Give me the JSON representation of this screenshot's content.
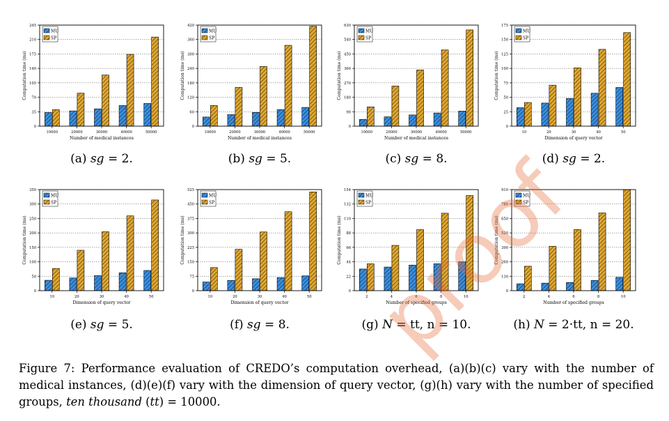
{
  "colors": {
    "mu": "#3b8fdf",
    "sp": "#e0a832",
    "hatch_mu": "#10355e",
    "hatch_sp": "#5a3c05",
    "watermark": "#e46937"
  },
  "legend": {
    "mu": "MU",
    "sp": "SP"
  },
  "chart_data": [
    {
      "type": "bar",
      "xlabel": "Number of medical instances",
      "ylabel": "Computation time (ms)",
      "categories": [
        "10000",
        "20000",
        "30000",
        "40000",
        "50000"
      ],
      "yticks": [
        "0",
        "35",
        "70",
        "105",
        "140",
        "175",
        "210",
        "245"
      ],
      "ylim": [
        0,
        245
      ],
      "series": [
        {
          "name": "MU",
          "values": [
            33,
            37,
            42,
            50,
            55
          ]
        },
        {
          "name": "SP",
          "values": [
            40,
            80,
            124,
            174,
            216
          ]
        }
      ]
    },
    {
      "type": "bar",
      "xlabel": "Number of medical instances",
      "ylabel": "Computation time (ms)",
      "categories": [
        "10000",
        "20000",
        "30000",
        "40000",
        "50000"
      ],
      "yticks": [
        "0",
        "60",
        "120",
        "180",
        "240",
        "300",
        "360",
        "420"
      ],
      "ylim": [
        0,
        420
      ],
      "series": [
        {
          "name": "MU",
          "values": [
            38,
            48,
            57,
            69,
            78
          ]
        },
        {
          "name": "SP",
          "values": [
            86,
            161,
            248,
            336,
            415
          ]
        }
      ]
    },
    {
      "type": "bar",
      "xlabel": "Number of medical instances",
      "ylabel": "Computation time (ms)",
      "categories": [
        "10000",
        "20000",
        "30000",
        "40000",
        "50000"
      ],
      "yticks": [
        "0",
        "90",
        "180",
        "270",
        "360",
        "450",
        "540",
        "630"
      ],
      "ylim": [
        0,
        630
      ],
      "series": [
        {
          "name": "MU",
          "values": [
            42,
            58,
            70,
            82,
            94
          ]
        },
        {
          "name": "SP",
          "values": [
            120,
            250,
            350,
            475,
            600
          ]
        }
      ]
    },
    {
      "type": "bar",
      "xlabel": "Dimension of query vector",
      "ylabel": "Computation time (ms)",
      "categories": [
        "10",
        "20",
        "30",
        "40",
        "50"
      ],
      "yticks": [
        "0",
        "25",
        "50",
        "75",
        "100",
        "125",
        "150",
        "175"
      ],
      "ylim": [
        0,
        175
      ],
      "series": [
        {
          "name": "MU",
          "values": [
            32,
            40,
            48,
            57,
            67
          ]
        },
        {
          "name": "SP",
          "values": [
            41,
            71,
            101,
            133,
            162
          ]
        }
      ]
    },
    {
      "type": "bar",
      "xlabel": "Dimension of query vector",
      "ylabel": "Computation time (ms)",
      "categories": [
        "10",
        "20",
        "30",
        "40",
        "50"
      ],
      "yticks": [
        "0",
        "50",
        "100",
        "150",
        "200",
        "250",
        "300",
        "350"
      ],
      "ylim": [
        0,
        350
      ],
      "series": [
        {
          "name": "MU",
          "values": [
            36,
            44,
            52,
            62,
            70
          ]
        },
        {
          "name": "SP",
          "values": [
            77,
            140,
            204,
            259,
            314
          ]
        }
      ]
    },
    {
      "type": "bar",
      "xlabel": "Dimension of query vector",
      "ylabel": "Computation time (ms)",
      "categories": [
        "10",
        "20",
        "30",
        "40",
        "50"
      ],
      "yticks": [
        "0",
        "75",
        "150",
        "225",
        "300",
        "375",
        "450",
        "525"
      ],
      "ylim": [
        0,
        525
      ],
      "series": [
        {
          "name": "MU",
          "values": [
            45,
            53,
            62,
            68,
            77
          ]
        },
        {
          "name": "SP",
          "values": [
            120,
            215,
            305,
            410,
            513
          ]
        }
      ]
    },
    {
      "type": "bar",
      "xlabel": "Number of specified groups",
      "ylabel": "Computation time (ms)",
      "categories": [
        "2",
        "4",
        "6",
        "8",
        "10"
      ],
      "yticks": [
        "0",
        "22",
        "44",
        "66",
        "88",
        "110",
        "132",
        "154"
      ],
      "ylim": [
        0,
        154
      ],
      "series": [
        {
          "name": "MU",
          "values": [
            33,
            36,
            39,
            41,
            44
          ]
        },
        {
          "name": "SP",
          "values": [
            41,
            69,
            93,
            118,
            145
          ]
        }
      ]
    },
    {
      "type": "bar",
      "xlabel": "Number of specified groups",
      "ylabel": "Computation time (ms)",
      "categories": [
        "2",
        "4",
        "6",
        "8",
        "10"
      ],
      "yticks": [
        "0",
        "130",
        "260",
        "390",
        "520",
        "650",
        "780",
        "910"
      ],
      "ylim": [
        0,
        910
      ],
      "series": [
        {
          "name": "MU",
          "values": [
            62,
            68,
            74,
            92,
            120
          ]
        },
        {
          "name": "SP",
          "values": [
            220,
            400,
            550,
            700,
            910
          ]
        }
      ]
    }
  ],
  "panel_captions": [
    {
      "label": "(a)",
      "var": "sg",
      "rest": " = 2."
    },
    {
      "label": "(b)",
      "var": "sg",
      "rest": " = 5."
    },
    {
      "label": "(c)",
      "var": "sg",
      "rest": " = 8."
    },
    {
      "label": "(d)",
      "var": "sg",
      "rest": " = 2."
    },
    {
      "label": "(e)",
      "var": "sg",
      "rest": " = 5."
    },
    {
      "label": "(f)",
      "var": "sg",
      "rest": " = 8."
    },
    {
      "label": "(g)",
      "var": "N",
      "rest": " = tt, n = 10."
    },
    {
      "label": "(h)",
      "var": "N",
      "rest": " = 2·tt, n = 20."
    }
  ],
  "figure_caption": {
    "part1": "Figure 7: Performance evaluation of CREDO’s computation overhead, (a)(b)(c) vary with the number of medical instances, (d)(e)(f) vary with the dimension of query vector, (g)(h) vary with the number of specified groups, ",
    "italic": "ten thousand",
    "part2": " (",
    "italic2": "tt",
    "part3": ") = 10000."
  },
  "watermark": "proof"
}
